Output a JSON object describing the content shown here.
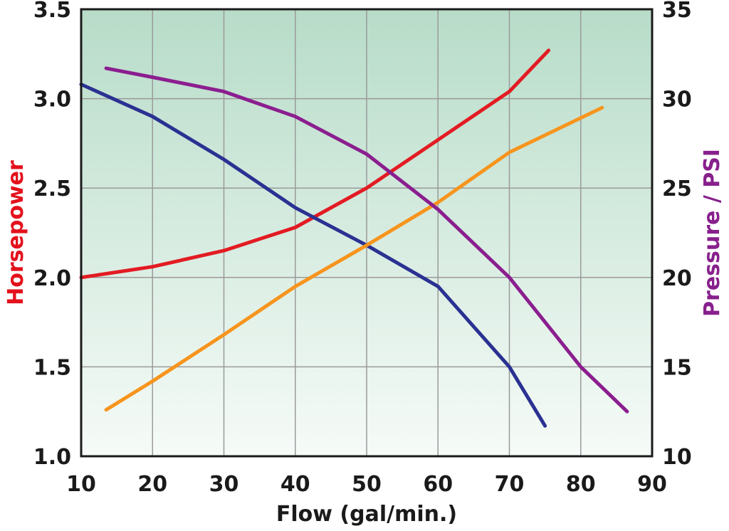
{
  "chart_data": {
    "type": "line",
    "xlabel": "Flow (gal/min.)",
    "ylabel_left": "Horsepower",
    "ylabel_right": "Pressure / PSI",
    "xlim": [
      10,
      90
    ],
    "ylim_left": [
      1.0,
      3.5
    ],
    "ylim_right": [
      10,
      35
    ],
    "x_ticks": [
      "10",
      "20",
      "30",
      "40",
      "50",
      "60",
      "70",
      "80",
      "90"
    ],
    "y_left_ticks": [
      "1.0",
      "1.5",
      "2.0",
      "2.5",
      "3.0",
      "3.5"
    ],
    "y_right_ticks": [
      "10",
      "15",
      "20",
      "25",
      "30",
      "35"
    ],
    "grid": true,
    "colors": {
      "horsepower_label": "#e3111c",
      "pressure_label": "#87208c",
      "background_top": "#b7dcc8",
      "background_bottom": "#f6fbf8",
      "grid": "#9a9a9a",
      "frame": "#1a1a1a"
    },
    "series": [
      {
        "axis": "left",
        "color": "#e31b23",
        "x": [
          10,
          20,
          30,
          40,
          50,
          60,
          70,
          75.5
        ],
        "y": [
          2.0,
          2.06,
          2.15,
          2.28,
          2.5,
          2.77,
          3.04,
          3.27
        ]
      },
      {
        "axis": "left",
        "color": "#2a3192",
        "x": [
          10,
          20,
          30,
          40,
          50,
          60,
          70,
          75
        ],
        "y": [
          3.08,
          2.9,
          2.66,
          2.39,
          2.18,
          1.95,
          1.5,
          1.17
        ]
      },
      {
        "axis": "right",
        "color": "#f7941d",
        "x": [
          13.5,
          20,
          30,
          40,
          50,
          60,
          70,
          83
        ],
        "y": [
          12.6,
          14.2,
          16.8,
          19.5,
          21.8,
          24.2,
          27,
          29.5
        ]
      },
      {
        "axis": "right",
        "color": "#8b1e8f",
        "x": [
          13.5,
          20,
          30,
          40,
          50,
          60,
          70,
          80,
          86.5
        ],
        "y": [
          31.7,
          31.2,
          30.4,
          29.0,
          26.9,
          23.8,
          20.0,
          15.0,
          12.5
        ]
      }
    ]
  }
}
